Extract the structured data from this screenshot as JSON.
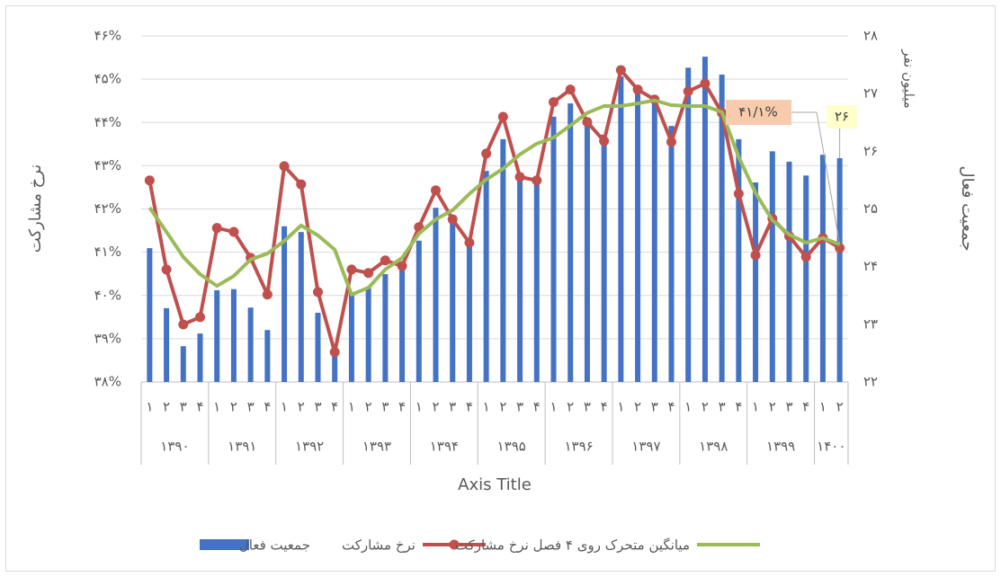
{
  "chart_data": {
    "type": "bar-line",
    "y_label": "نرخ مشارکت",
    "y2_label": "جمعیت فعال",
    "y2_unit": "میلیون نفر",
    "x_label": "Axis Title",
    "categories": [
      "۱",
      "۲",
      "۳",
      "۴",
      "۱",
      "۲",
      "۳",
      "۴",
      "۱",
      "۲",
      "۳",
      "۴",
      "۱",
      "۲",
      "۳",
      "۴",
      "۱",
      "۲",
      "۳",
      "۴",
      "۱",
      "۲",
      "۳",
      "۴",
      "۱",
      "۲",
      "۳",
      "۴",
      "۱",
      "۲",
      "۳",
      "۴",
      "۱",
      "۲",
      "۳",
      "۴",
      "۱",
      "۲",
      "۳",
      "۴",
      "۱",
      "۲"
    ],
    "category_groups": [
      "۱۳۹۰",
      "۱۳۹۱",
      "۱۳۹۲",
      "۱۳۹۳",
      "۱۳۹۴",
      "۱۳۹۵",
      "۱۳۹۶",
      "۱۳۹۷",
      "۱۳۹۸",
      "۱۳۹۹",
      "۱۴۰۰"
    ],
    "series": [
      {
        "name": "جمعیت فعال",
        "type": "bar",
        "axis": "y2",
        "color": "#4472c4",
        "values": [
          24.32,
          23.28,
          22.62,
          22.84,
          23.59,
          23.61,
          23.29,
          22.9,
          24.7,
          24.6,
          23.2,
          22.55,
          23.56,
          23.64,
          23.87,
          23.95,
          24.45,
          25.02,
          24.8,
          24.49,
          25.66,
          26.21,
          25.58,
          25.5,
          26.6,
          26.83,
          26.52,
          26.29,
          27.3,
          27.06,
          26.91,
          26.44,
          27.45,
          27.64,
          27.33,
          26.21,
          25.46,
          26.0,
          25.82,
          25.58,
          25.94,
          25.88
        ]
      },
      {
        "name": "نرخ مشارکت",
        "type": "line",
        "markers": true,
        "color": "#c0504d",
        "values": [
          42.66,
          40.6,
          39.33,
          39.5,
          41.56,
          41.47,
          40.87,
          40.02,
          42.99,
          42.57,
          40.08,
          38.69,
          40.6,
          40.52,
          40.81,
          40.68,
          41.58,
          42.43,
          41.76,
          41.22,
          43.28,
          44.13,
          42.74,
          42.66,
          44.47,
          44.76,
          44.01,
          43.57,
          45.21,
          44.76,
          44.53,
          43.55,
          44.72,
          44.9,
          44.22,
          42.35,
          40.93,
          41.78,
          41.37,
          40.89,
          41.33,
          41.1
        ]
      },
      {
        "name": "میانگین متحرک روی ۴ فصل نرخ مشارکت",
        "type": "line",
        "markers": false,
        "color": "#9bbb59",
        "values": [
          42.03,
          41.47,
          40.89,
          40.49,
          40.22,
          40.45,
          40.83,
          40.97,
          41.26,
          41.62,
          41.39,
          41.06,
          40.02,
          40.18,
          40.6,
          40.87,
          41.43,
          41.76,
          41.97,
          42.35,
          42.68,
          42.93,
          43.26,
          43.51,
          43.65,
          43.93,
          44.22,
          44.38,
          44.38,
          44.44,
          44.51,
          44.4,
          44.38,
          44.38,
          44.24,
          43.2,
          42.37,
          41.74,
          41.41,
          41.22,
          41.33,
          41.18
        ]
      }
    ],
    "ylim": [
      38,
      46
    ],
    "yticks": [
      {
        "value": 38,
        "label": "۳۸%"
      },
      {
        "value": 39,
        "label": "۳۹%"
      },
      {
        "value": 40,
        "label": "۴۰%"
      },
      {
        "value": 41,
        "label": "۴۱%"
      },
      {
        "value": 42,
        "label": "۴۲%"
      },
      {
        "value": 43,
        "label": "۴۳%"
      },
      {
        "value": 44,
        "label": "۴۴%"
      },
      {
        "value": 45,
        "label": "۴۵%"
      },
      {
        "value": 46,
        "label": "۴۶%"
      }
    ],
    "y2lim": [
      22,
      28
    ],
    "y2ticks": [
      {
        "value": 22,
        "label": "۲۲"
      },
      {
        "value": 23,
        "label": "۲۳"
      },
      {
        "value": 24,
        "label": "۲۴"
      },
      {
        "value": 25,
        "label": "۲۵"
      },
      {
        "value": 26,
        "label": "۲۶"
      },
      {
        "value": 27,
        "label": "۲۷"
      },
      {
        "value": 28,
        "label": "۲۸"
      }
    ],
    "grid": true,
    "legend": "bottom",
    "annotations": [
      {
        "text": "۴۱/۱%",
        "color": "#f8cbad"
      },
      {
        "text": "۲۶",
        "color": "#ffffcc"
      }
    ]
  }
}
